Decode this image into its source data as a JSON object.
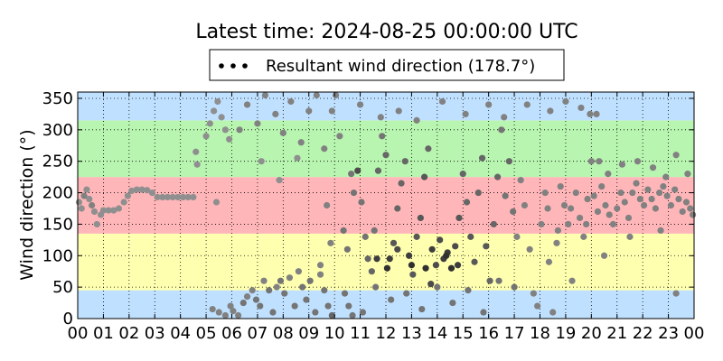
{
  "chart_data": {
    "type": "scatter",
    "title": "Latest time: 2024-08-25 00:00:00 UTC",
    "xlabel": "",
    "ylabel": "Wind direction (°)",
    "xlim": [
      0,
      24
    ],
    "ylim": [
      0,
      360
    ],
    "x_unit": "hour of day (UTC)",
    "grid": true,
    "legend": {
      "placement": "top-center",
      "label": "Resultant wind direction (178.7°)"
    },
    "x_tick_labels": [
      "00",
      "01",
      "02",
      "03",
      "04",
      "05",
      "06",
      "07",
      "08",
      "09",
      "10",
      "11",
      "12",
      "13",
      "14",
      "15",
      "16",
      "17",
      "18",
      "19",
      "20",
      "21",
      "22",
      "23",
      "00"
    ],
    "y_ticks": [
      0,
      50,
      100,
      150,
      200,
      250,
      300,
      350
    ],
    "bands": [
      {
        "from": 0,
        "to": 45,
        "color": "#bfe0ff"
      },
      {
        "from": 45,
        "to": 135,
        "color": "#ffffb0"
      },
      {
        "from": 135,
        "to": 225,
        "color": "#ffb6b9"
      },
      {
        "from": 225,
        "to": 315,
        "color": "#b8f5b0"
      },
      {
        "from": 315,
        "to": 360,
        "color": "#bfe0ff"
      }
    ],
    "series": [
      {
        "marker": "circle",
        "color_range": [
          "#aaaaaa",
          "#222222"
        ],
        "points": [
          [
            0.05,
            185,
            0.2
          ],
          [
            0.15,
            175,
            0.2
          ],
          [
            0.25,
            195,
            0.3
          ],
          [
            0.35,
            205,
            0.2
          ],
          [
            0.45,
            190,
            0.2
          ],
          [
            0.55,
            180,
            0.3
          ],
          [
            0.65,
            170,
            0.2
          ],
          [
            0.75,
            150,
            0.2
          ],
          [
            0.9,
            165,
            0.2
          ],
          [
            1.0,
            172,
            0.2
          ],
          [
            1.2,
            172,
            0.2
          ],
          [
            1.4,
            172,
            0.2
          ],
          [
            1.6,
            175,
            0.2
          ],
          [
            1.8,
            185,
            0.2
          ],
          [
            1.95,
            195,
            0.2
          ],
          [
            2.1,
            203,
            0.2
          ],
          [
            2.3,
            205,
            0.2
          ],
          [
            2.5,
            205,
            0.2
          ],
          [
            2.7,
            204,
            0.2
          ],
          [
            2.9,
            200,
            0.2
          ],
          [
            3.1,
            193,
            0.2
          ],
          [
            3.3,
            193,
            0.2
          ],
          [
            3.5,
            193,
            0.2
          ],
          [
            3.7,
            193,
            0.2
          ],
          [
            3.9,
            193,
            0.2
          ],
          [
            4.1,
            193,
            0.2
          ],
          [
            4.3,
            193,
            0.2
          ],
          [
            4.5,
            193,
            0.2
          ],
          [
            4.6,
            265,
            0.2
          ],
          [
            4.65,
            245,
            0.2
          ],
          [
            5.0,
            290,
            0.2
          ],
          [
            5.15,
            310,
            0.2
          ],
          [
            5.3,
            330,
            0.2
          ],
          [
            5.45,
            345,
            0.2
          ],
          [
            5.6,
            320,
            0.2
          ],
          [
            5.75,
            300,
            0.2
          ],
          [
            5.9,
            285,
            0.2
          ],
          [
            5.4,
            185,
            0.2
          ],
          [
            5.25,
            15,
            0.3
          ],
          [
            5.5,
            10,
            0.3
          ],
          [
            5.75,
            5,
            0.3
          ],
          [
            5.95,
            20,
            0.3
          ],
          [
            6.05,
            12,
            0.3
          ],
          [
            6.25,
            5,
            0.3
          ],
          [
            6.45,
            25,
            0.4
          ],
          [
            6.6,
            35,
            0.3
          ],
          [
            6.8,
            45,
            0.3
          ],
          [
            6.95,
            30,
            0.4
          ],
          [
            7.1,
            20,
            0.4
          ],
          [
            7.25,
            60,
            0.3
          ],
          [
            7.45,
            45,
            0.4
          ],
          [
            7.6,
            10,
            0.4
          ],
          [
            7.75,
            50,
            0.3
          ],
          [
            7.9,
            60,
            0.4
          ],
          [
            8.05,
            40,
            0.4
          ],
          [
            8.25,
            65,
            0.3
          ],
          [
            8.45,
            20,
            0.4
          ],
          [
            8.6,
            75,
            0.3
          ],
          [
            8.75,
            50,
            0.4
          ],
          [
            8.9,
            30,
            0.4
          ],
          [
            9.05,
            60,
            0.4
          ],
          [
            9.25,
            10,
            0.4
          ],
          [
            9.45,
            70,
            0.3
          ],
          [
            9.6,
            45,
            0.4
          ],
          [
            9.75,
            20,
            0.4
          ],
          [
            9.9,
            5,
            0.5
          ],
          [
            6.3,
            300,
            0.3
          ],
          [
            6.6,
            340,
            0.3
          ],
          [
            7.0,
            310,
            0.3
          ],
          [
            7.3,
            355,
            0.3
          ],
          [
            7.7,
            325,
            0.3
          ],
          [
            8.0,
            295,
            0.3
          ],
          [
            8.3,
            345,
            0.3
          ],
          [
            8.7,
            280,
            0.3
          ],
          [
            9.0,
            330,
            0.3
          ],
          [
            9.3,
            355,
            0.3
          ],
          [
            9.6,
            270,
            0.3
          ],
          [
            9.9,
            330,
            0.3
          ],
          [
            7.15,
            250,
            0.2
          ],
          [
            7.85,
            220,
            0.2
          ],
          [
            8.55,
            255,
            0.2
          ],
          [
            9.45,
            85,
            0.3
          ],
          [
            9.85,
            120,
            0.3
          ],
          [
            9.7,
            180,
            0.3
          ],
          [
            10.05,
            355,
            0.3
          ],
          [
            10.2,
            290,
            0.3
          ],
          [
            10.35,
            140,
            0.4
          ],
          [
            10.5,
            110,
            0.4
          ],
          [
            10.65,
            230,
            0.4
          ],
          [
            10.75,
            200,
            0.4
          ],
          [
            10.9,
            235,
            0.7
          ],
          [
            11.05,
            185,
            0.4
          ],
          [
            11.2,
            130,
            0.4
          ],
          [
            11.3,
            95,
            0.5
          ],
          [
            11.45,
            75,
            0.5
          ],
          [
            11.55,
            140,
            0.4
          ],
          [
            11.7,
            235,
            0.5
          ],
          [
            11.85,
            290,
            0.4
          ],
          [
            12.0,
            260,
            0.5
          ],
          [
            12.15,
            95,
            0.8
          ],
          [
            12.3,
            120,
            0.6
          ],
          [
            12.45,
            175,
            0.5
          ],
          [
            12.6,
            215,
            0.5
          ],
          [
            12.75,
            250,
            0.5
          ],
          [
            12.9,
            100,
            0.8
          ],
          [
            13.05,
            70,
            0.6
          ],
          [
            13.2,
            130,
            0.6
          ],
          [
            13.35,
            160,
            0.6
          ],
          [
            13.5,
            225,
            0.6
          ],
          [
            13.65,
            270,
            0.5
          ],
          [
            13.8,
            110,
            0.8
          ],
          [
            13.95,
            85,
            0.7
          ],
          [
            14.1,
            125,
            0.7
          ],
          [
            14.25,
            95,
            0.8
          ],
          [
            14.4,
            105,
            0.8
          ],
          [
            14.55,
            80,
            0.9
          ],
          [
            14.7,
            115,
            0.7
          ],
          [
            14.85,
            160,
            0.6
          ],
          [
            15.0,
            230,
            0.5
          ],
          [
            15.15,
            185,
            0.5
          ],
          [
            15.3,
            130,
            0.6
          ],
          [
            15.45,
            90,
            0.6
          ],
          [
            15.6,
            200,
            0.5
          ],
          [
            15.75,
            255,
            0.5
          ],
          [
            15.9,
            115,
            0.6
          ],
          [
            16.05,
            60,
            0.5
          ],
          [
            16.2,
            150,
            0.5
          ],
          [
            16.35,
            225,
            0.5
          ],
          [
            16.5,
            300,
            0.4
          ],
          [
            16.65,
            195,
            0.4
          ],
          [
            16.8,
            250,
            0.5
          ],
          [
            16.95,
            170,
            0.4
          ],
          [
            10.4,
            40,
            0.4
          ],
          [
            10.55,
            20,
            0.4
          ],
          [
            10.7,
            5,
            0.4
          ],
          [
            11.1,
            10,
            0.4
          ],
          [
            11.6,
            50,
            0.4
          ],
          [
            12.2,
            30,
            0.4
          ],
          [
            12.8,
            40,
            0.4
          ],
          [
            13.4,
            15,
            0.4
          ],
          [
            14.0,
            50,
            0.4
          ],
          [
            14.6,
            25,
            0.4
          ],
          [
            15.2,
            45,
            0.4
          ],
          [
            15.8,
            10,
            0.4
          ],
          [
            16.4,
            60,
            0.4
          ],
          [
            17.0,
            50,
            0.4
          ],
          [
            11.0,
            340,
            0.3
          ],
          [
            11.8,
            320,
            0.3
          ],
          [
            12.5,
            330,
            0.3
          ],
          [
            13.2,
            315,
            0.3
          ],
          [
            14.2,
            345,
            0.3
          ],
          [
            15.1,
            325,
            0.3
          ],
          [
            16.0,
            340,
            0.3
          ],
          [
            16.6,
            320,
            0.3
          ],
          [
            12.05,
            80,
            0.9
          ],
          [
            13.0,
            85,
            0.9
          ],
          [
            13.55,
            80,
            0.9
          ],
          [
            14.35,
            100,
            0.9
          ],
          [
            14.8,
            85,
            0.8
          ],
          [
            11.65,
            95,
            0.8
          ],
          [
            12.45,
            110,
            0.7
          ],
          [
            13.75,
            55,
            0.7
          ],
          [
            17.1,
            130,
            0.3
          ],
          [
            17.25,
            220,
            0.3
          ],
          [
            17.4,
            180,
            0.3
          ],
          [
            17.6,
            110,
            0.3
          ],
          [
            17.75,
            40,
            0.3
          ],
          [
            17.9,
            20,
            0.3
          ],
          [
            18.05,
            150,
            0.3
          ],
          [
            18.2,
            200,
            0.3
          ],
          [
            18.35,
            90,
            0.3
          ],
          [
            18.5,
            10,
            0.3
          ],
          [
            18.65,
            120,
            0.3
          ],
          [
            18.8,
            210,
            0.3
          ],
          [
            18.95,
            180,
            0.3
          ],
          [
            19.1,
            150,
            0.3
          ],
          [
            19.25,
            60,
            0.3
          ],
          [
            19.4,
            200,
            0.3
          ],
          [
            19.55,
            160,
            0.3
          ],
          [
            19.7,
            130,
            0.3
          ],
          [
            19.85,
            190,
            0.3
          ],
          [
            17.5,
            340,
            0.3
          ],
          [
            18.4,
            330,
            0.3
          ],
          [
            19.0,
            345,
            0.3
          ],
          [
            19.6,
            335,
            0.3
          ],
          [
            19.95,
            325,
            0.3
          ],
          [
            18.3,
            175,
            0.3
          ],
          [
            18.7,
            140,
            0.3
          ],
          [
            19.2,
            175,
            0.3
          ],
          [
            19.8,
            150,
            0.3
          ],
          [
            20.0,
            250,
            0.3
          ],
          [
            20.1,
            195,
            0.3
          ],
          [
            20.25,
            170,
            0.3
          ],
          [
            20.4,
            210,
            0.3
          ],
          [
            20.55,
            180,
            0.3
          ],
          [
            20.7,
            165,
            0.3
          ],
          [
            20.85,
            150,
            0.3
          ],
          [
            21.0,
            175,
            0.3
          ],
          [
            21.15,
            200,
            0.3
          ],
          [
            21.3,
            185,
            0.3
          ],
          [
            21.45,
            160,
            0.3
          ],
          [
            21.6,
            200,
            0.3
          ],
          [
            21.75,
            215,
            0.3
          ],
          [
            21.9,
            190,
            0.3
          ],
          [
            22.05,
            180,
            0.3
          ],
          [
            22.2,
            205,
            0.3
          ],
          [
            22.35,
            190,
            0.3
          ],
          [
            22.5,
            175,
            0.3
          ],
          [
            22.65,
            200,
            0.3
          ],
          [
            22.8,
            210,
            0.3
          ],
          [
            22.95,
            195,
            0.3
          ],
          [
            23.1,
            180,
            0.3
          ],
          [
            23.25,
            205,
            0.3
          ],
          [
            23.4,
            190,
            0.3
          ],
          [
            23.55,
            170,
            0.3
          ],
          [
            23.7,
            185,
            0.3
          ],
          [
            23.85,
            175,
            0.3
          ],
          [
            23.95,
            165,
            0.3
          ],
          [
            20.3,
            250,
            0.3
          ],
          [
            20.65,
            230,
            0.3
          ],
          [
            21.2,
            245,
            0.3
          ],
          [
            21.8,
            250,
            0.3
          ],
          [
            22.4,
            240,
            0.3
          ],
          [
            22.9,
            225,
            0.3
          ],
          [
            23.3,
            260,
            0.3
          ],
          [
            23.75,
            230,
            0.3
          ],
          [
            20.5,
            100,
            0.3
          ],
          [
            21.5,
            130,
            0.3
          ],
          [
            22.7,
            140,
            0.3
          ],
          [
            23.3,
            40,
            0.3
          ],
          [
            20.2,
            325,
            0.3
          ]
        ]
      }
    ]
  }
}
